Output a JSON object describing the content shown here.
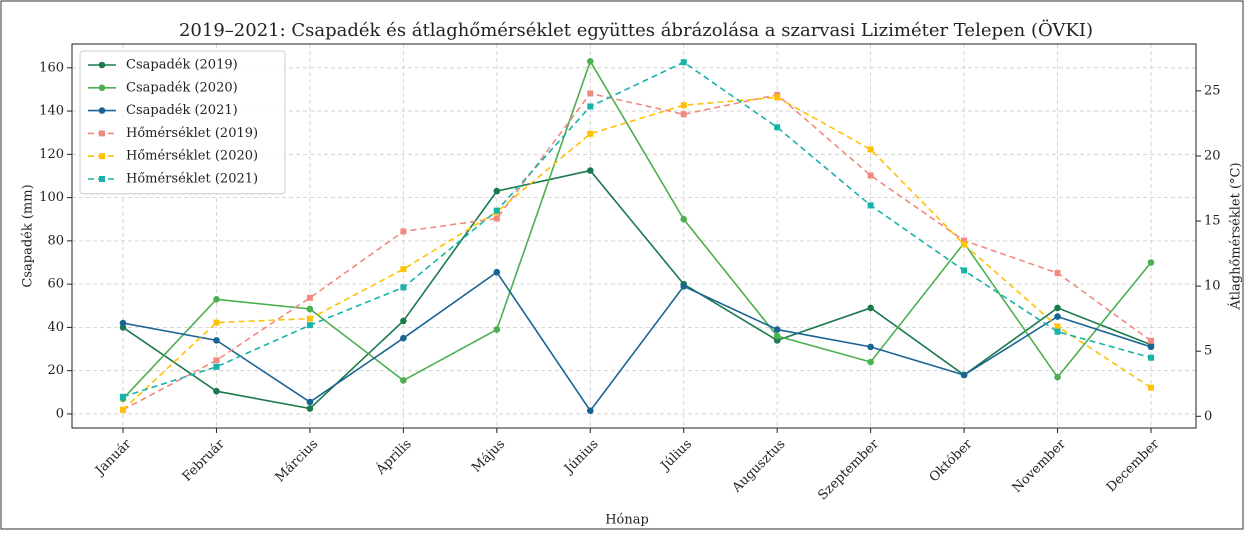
{
  "chart_data": {
    "type": "line",
    "title": "2019–2021: Csapadék és átlaghőmérséklet együttes ábrázolása a szarvasi Liziméter Telepen (ÖVKI)",
    "x_label": "Hónap",
    "y_label": "Csapadék (mm)",
    "y2_label": "Átlaghőmérséklet (°C)",
    "categories": [
      "Január",
      "Február",
      "Március",
      "Április",
      "Május",
      "Június",
      "Július",
      "Augusztus",
      "Szeptember",
      "Október",
      "November",
      "December"
    ],
    "series": [
      {
        "name": "Csapadék (2019)",
        "color": "#1b7a4b",
        "marker": "circle",
        "linestyle": "solid",
        "values": [
          40,
          10.5,
          2.5,
          43,
          103,
          112.5,
          60,
          34,
          49,
          18,
          49,
          32
        ]
      },
      {
        "name": "Csapadék (2020)",
        "color": "#4caf50",
        "marker": "circle",
        "linestyle": "solid",
        "values": [
          7,
          53,
          48.5,
          15.5,
          39,
          163,
          90,
          36,
          24,
          79,
          17,
          70
        ]
      },
      {
        "name": "Csapadék (2021)",
        "color": "#1a6494",
        "marker": "circle",
        "linestyle": "solid",
        "values": [
          42,
          34,
          5.5,
          35,
          65.5,
          1.5,
          59,
          39,
          31,
          18,
          45,
          31
        ]
      },
      {
        "name": "Hőmérséklet (2019)",
        "color": "#f08a80",
        "marker": "square",
        "linestyle": "dashed",
        "axis": "y2",
        "values": [
          0.5,
          4.3,
          9.1,
          14.2,
          15.2,
          24.8,
          23.2,
          24.7,
          18.5,
          13.5,
          11.0,
          5.8
        ]
      },
      {
        "name": "Hőmérséklet (2020)",
        "color": "#ffc107",
        "marker": "square",
        "linestyle": "dashed",
        "axis": "y2",
        "values": [
          0.5,
          7.2,
          7.5,
          11.3,
          15.7,
          21.7,
          23.9,
          24.5,
          20.5,
          13.2,
          6.9,
          2.2
        ]
      },
      {
        "name": "Hőmérséklet (2021)",
        "color": "#17b3aa",
        "marker": "square",
        "linestyle": "dashed",
        "axis": "y2",
        "values": [
          1.5,
          3.8,
          7.0,
          9.9,
          15.8,
          23.8,
          27.2,
          22.2,
          16.2,
          11.2,
          6.5,
          4.5
        ]
      }
    ],
    "ylim": [
      -6.5,
      171
    ],
    "yticks": [
      0,
      20,
      40,
      60,
      80,
      100,
      120,
      140,
      160
    ],
    "y2lim": [
      -0.9,
      28.6
    ],
    "y2ticks": [
      0,
      5,
      10,
      15,
      20,
      25
    ],
    "grid": true,
    "legend": "upper left"
  }
}
